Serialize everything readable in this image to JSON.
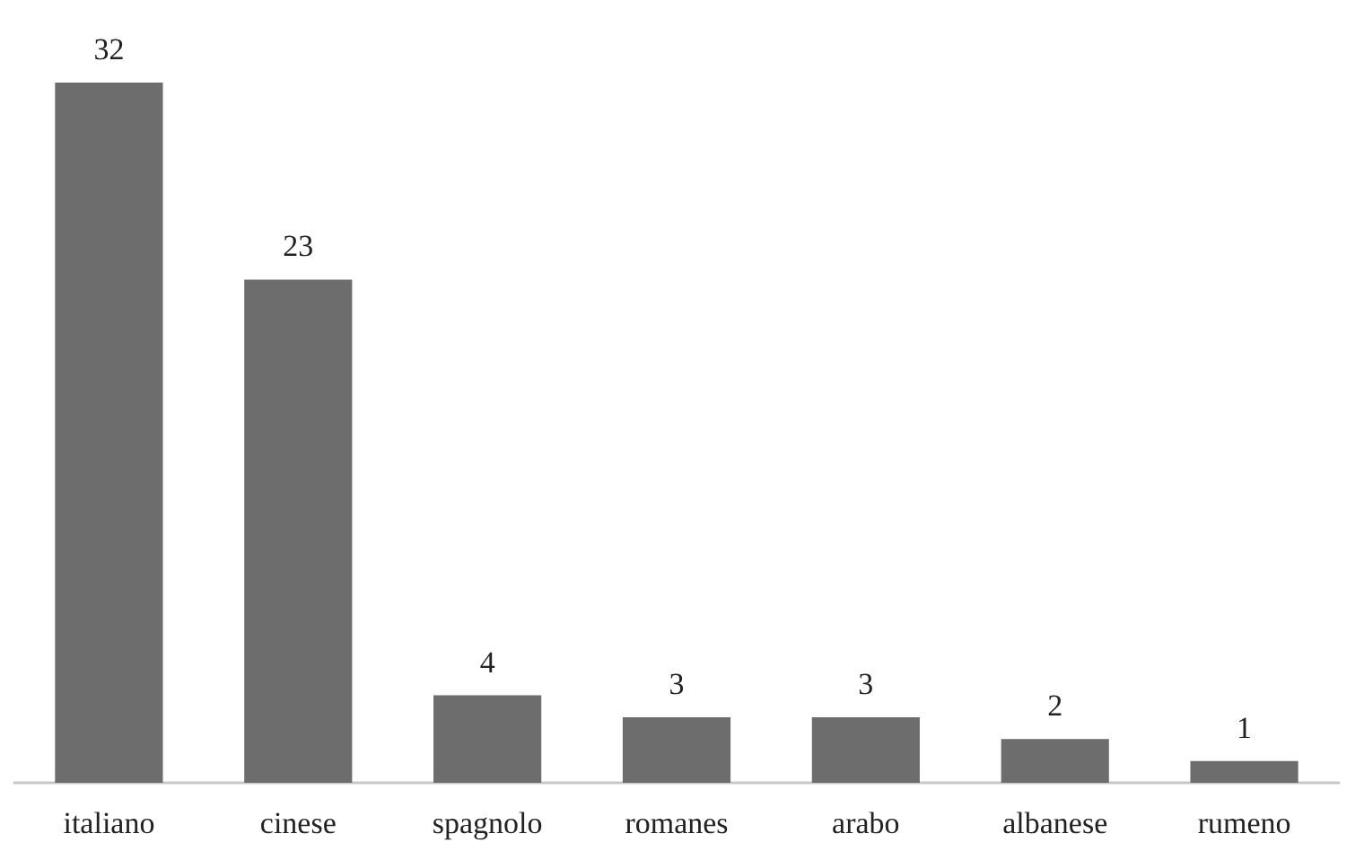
{
  "chart_data": {
    "type": "bar",
    "categories": [
      "italiano",
      "cinese",
      "spagnolo",
      "romanes",
      "arabo",
      "albanese",
      "rumeno"
    ],
    "values": [
      32,
      23,
      4,
      3,
      3,
      2,
      1
    ],
    "color": "#6d6d6d",
    "data_labels": true
  }
}
